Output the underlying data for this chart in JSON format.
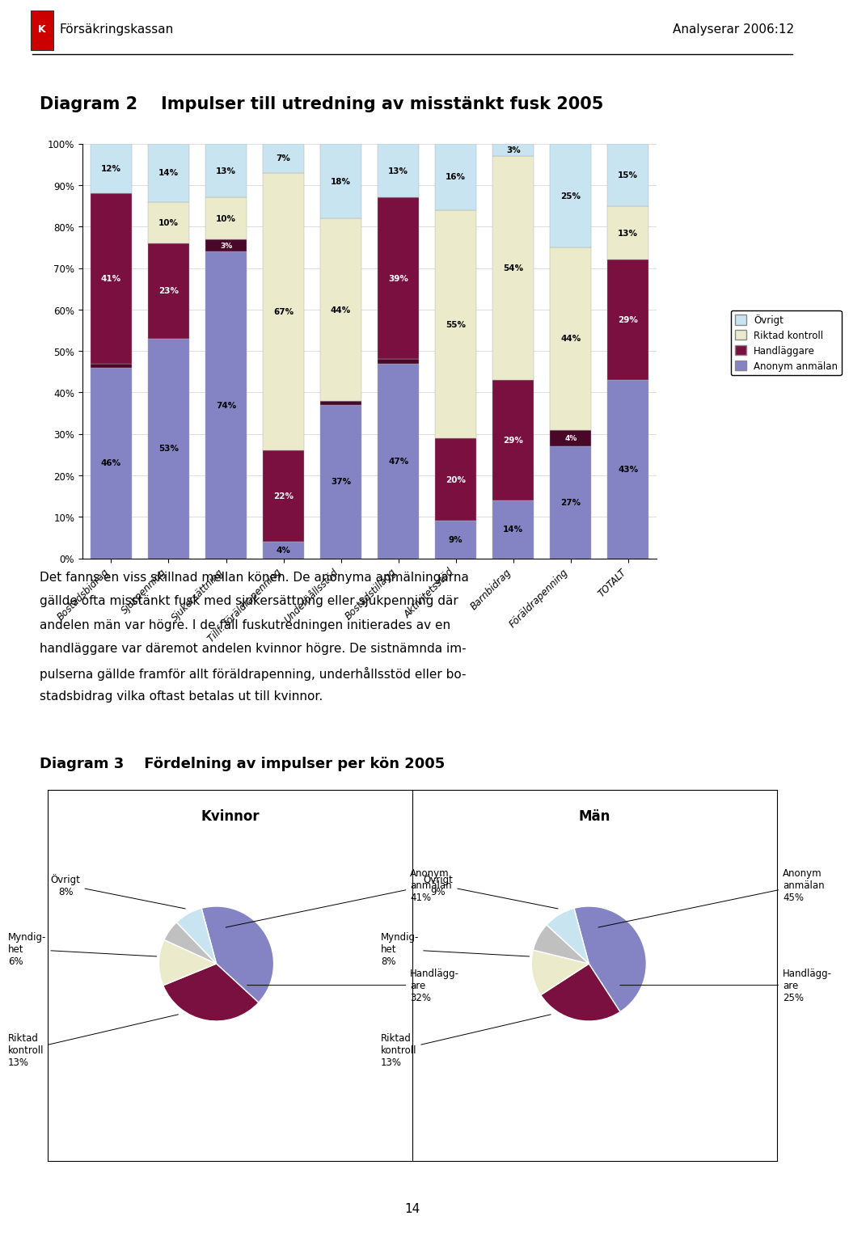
{
  "header_left": "Försäkringskassan",
  "header_right": "Analyserar 2006:12",
  "title_diagram2": "Diagram 2    Impulser till utredning av misstänkt fusk 2005",
  "categories": [
    "Bostadsbidrag",
    "Sjukpenning",
    "Sjukersättning",
    "Tillf. föräldrapenning",
    "Underhållsstöd",
    "Bostadstillägg",
    "Aktivitetsstöd",
    "Barnbidrag",
    "Föräldrapenning",
    "TOTALT"
  ],
  "anonym": [
    46,
    53,
    74,
    4,
    37,
    47,
    9,
    14,
    27,
    43
  ],
  "handlaggare": [
    41,
    23,
    0,
    22,
    0,
    39,
    20,
    29,
    0,
    29
  ],
  "handlaggare_thin": [
    1,
    0,
    3,
    0,
    1,
    1,
    0,
    0,
    4,
    0
  ],
  "riktad": [
    0,
    10,
    10,
    67,
    44,
    0,
    55,
    54,
    44,
    13
  ],
  "ovrigt": [
    12,
    14,
    13,
    7,
    18,
    13,
    16,
    3,
    25,
    15
  ],
  "color_anonym": "#8484c4",
  "color_handlaggare": "#7a1040",
  "color_handlaggare_thin": "#4a0828",
  "color_riktad": "#ebebcc",
  "color_ovrigt": "#c8e4f0",
  "legend_items": [
    "Övrigt",
    "Riktad kontroll",
    "Handläggare",
    "Anonym anmälan"
  ],
  "text_body1": "Det fanns en viss skillnad mellan könen. De anonyma anmälningarna",
  "text_body2": "gällde ofta misstänkt fusk med sjukersättning eller sjukpenning där",
  "text_body3": "andelen män var högre. I de fall fuskutredningen initierades av en",
  "text_body4": "handläggare var däremot andelen kvinnor högre. De sistnämnda im-",
  "text_body5": "pulserna gällde framför allt föräldrapenning, underhållsstöd eller bo-",
  "text_body6": "stadsbidrag vilka oftast betalas ut till kvinnor.",
  "title_diagram3": "Diagram 3    Fördelning av impulser per kön 2005",
  "pie_women_values": [
    41,
    32,
    13,
    6,
    8
  ],
  "pie_women_colors": [
    "#8484c4",
    "#7a1040",
    "#ebebcc",
    "#c0c0c0",
    "#c8e4f0"
  ],
  "pie_women_labels": [
    "Anonym\nanmälan\n41%",
    "Handlägg-\nare\n32%",
    "Riktad\nkontroll\n13%",
    "Myndig-\nhet\n6%",
    "Övrigt\n8%"
  ],
  "pie_men_values": [
    45,
    25,
    13,
    8,
    9
  ],
  "pie_men_colors": [
    "#8484c4",
    "#7a1040",
    "#ebebcc",
    "#c0c0c0",
    "#c8e4f0"
  ],
  "pie_men_labels": [
    "Anonym\nanmälan\n45%",
    "Handlägg-\nare\n25%",
    "Riktad\nkontroll\n13%",
    "Myndig-\nhet\n8%",
    "Övrigt\n9%"
  ],
  "page_number": "14"
}
